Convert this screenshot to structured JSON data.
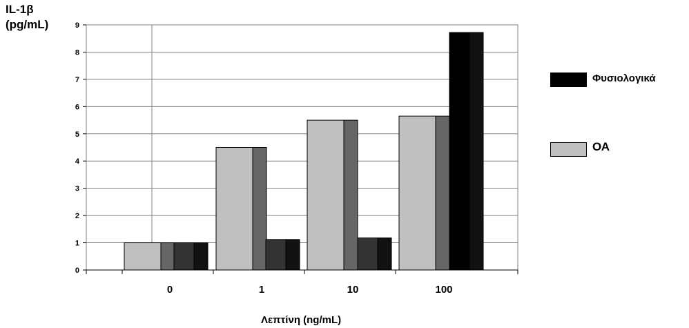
{
  "chart_data": {
    "type": "bar",
    "ylabel_line1": "IL-1β",
    "ylabel_line2": "(pg/mL)",
    "xlabel": "Λεπτίνη  (ng/mL)",
    "categories": [
      "0",
      "1",
      "10",
      "100"
    ],
    "ylim": [
      0,
      9
    ],
    "yticks": [
      "0",
      "1",
      "2",
      "3",
      "4",
      "5",
      "6",
      "7",
      "8",
      "9"
    ],
    "grid": true,
    "legend_position": "right",
    "series": [
      {
        "name": "ΟΑ",
        "values": [
          1.0,
          4.5,
          5.5,
          5.65
        ],
        "color": "#c0c0c0",
        "shade": "#666666"
      },
      {
        "name": "Φυσιολογικά",
        "values": [
          1.0,
          1.12,
          1.18,
          8.72
        ],
        "color": "#333333",
        "shade": "#111111"
      }
    ]
  },
  "legend": {
    "items": [
      {
        "label": "Φυσιολογικά",
        "color": "#000000"
      },
      {
        "label": "ΟΑ",
        "color": "#c0c0c0"
      }
    ]
  }
}
